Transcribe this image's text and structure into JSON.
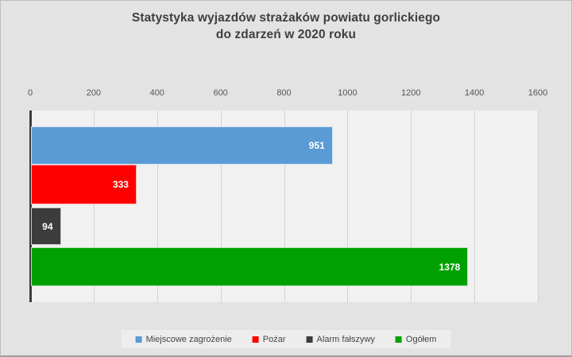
{
  "window": {
    "title_line1": "Statystyka wyjazdów strażaków powiatu gorlickiego",
    "title_line2": "do zdarzeń w 2020 roku"
  },
  "chart_data": {
    "type": "bar",
    "orientation": "horizontal",
    "title": "Statystyka wyjazdów strażaków powiatu gorlickiego do zdarzeń w 2020 roku",
    "categories": [
      "Miejscowe zagrożenie",
      "Pożar",
      "Alarm fałszywy",
      "Ogółem"
    ],
    "values": [
      951,
      333,
      94,
      1378
    ],
    "colors": [
      "#5b9bd5",
      "#ff0000",
      "#3c3c3c",
      "#00a000"
    ],
    "value_label_color": "#ffffff",
    "value_label_position": "inside-end",
    "xlim": [
      0,
      1600
    ],
    "xticks": [
      0,
      200,
      400,
      600,
      800,
      1000,
      1200,
      1400,
      1600
    ],
    "xlabel": "",
    "ylabel": "",
    "grid": true,
    "legend_position": "bottom",
    "legend_entries": [
      "Miejscowe zagrożenie",
      "Pożar",
      "Alarm fałszywy",
      "Ogółem"
    ]
  },
  "colors": {
    "background": "#e3e3e3",
    "plot_background": "#f1f1f1",
    "gridline": "#d2d2d2",
    "axis_line": "#3c3c3c",
    "title_text": "#3f3f3f",
    "tick_text": "#565656",
    "legend_background": "#ededed",
    "legend_text": "#444444"
  }
}
